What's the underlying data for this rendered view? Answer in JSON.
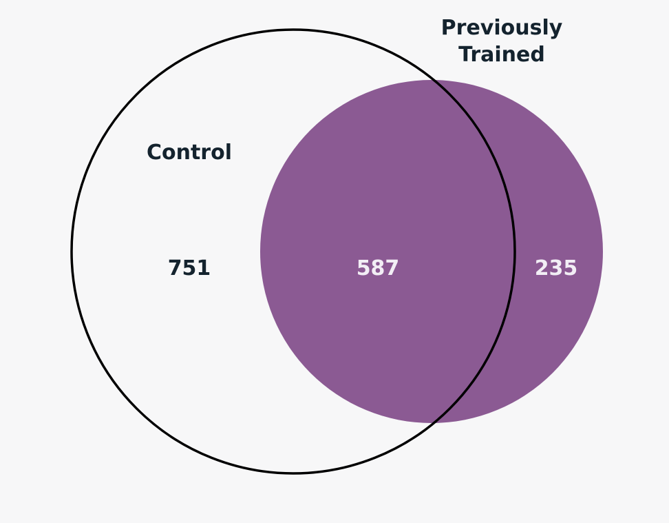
{
  "sets": {
    "control": {
      "label": "Control",
      "fill": "none",
      "stroke": "#000000"
    },
    "previously_trained": {
      "label_line1": "Previously",
      "label_line2": "Trained",
      "fill": "#8b5a93"
    }
  },
  "regions": {
    "control_only": "751",
    "intersection": "587",
    "trained_only": "235"
  },
  "colors": {
    "background": "#f7f7f8",
    "label_text": "#14232e",
    "number_on_fill": "#f2eef5"
  }
}
